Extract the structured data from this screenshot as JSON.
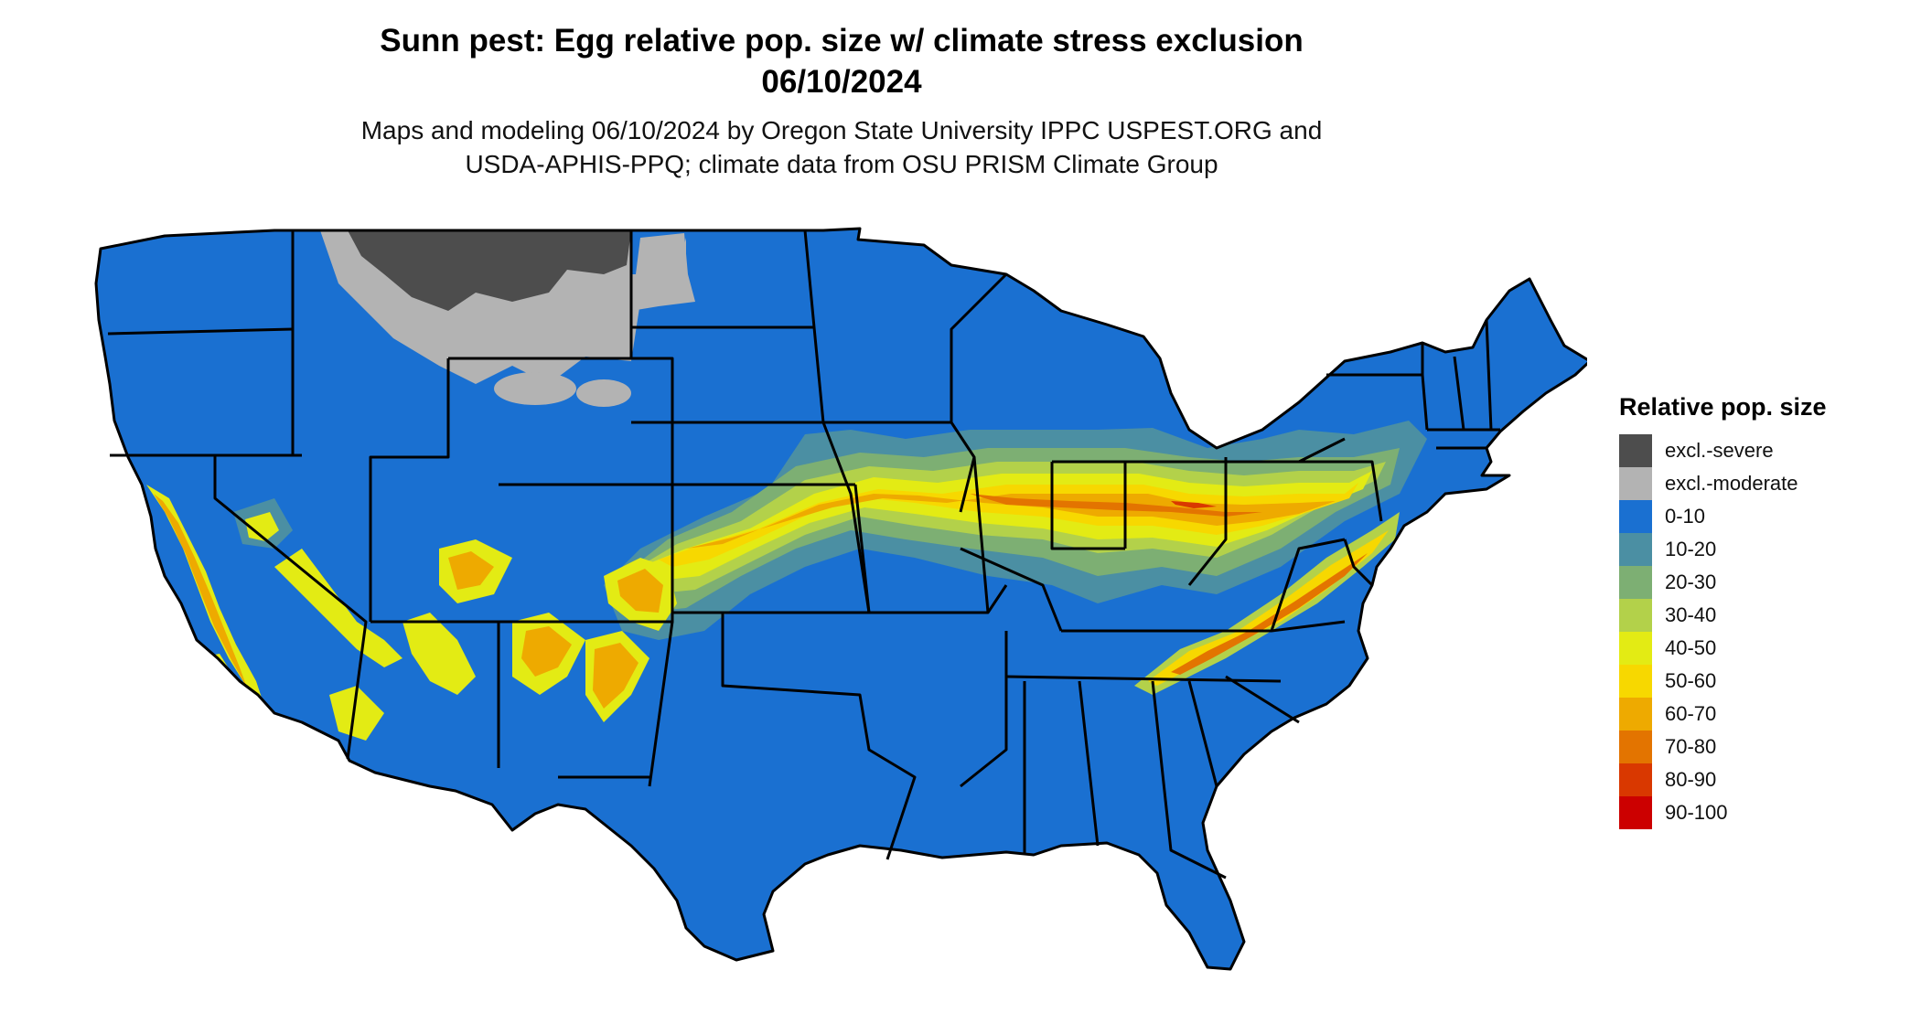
{
  "title": {
    "line1": "Sunn pest: Egg relative pop. size w/ climate stress exclusion",
    "line2": "06/10/2024"
  },
  "subtitle": {
    "line1": "Maps and modeling 06/10/2024 by Oregon State University IPPC USPEST.ORG and",
    "line2": "USDA-APHIS-PPQ; climate data from OSU PRISM Climate Group"
  },
  "legend": {
    "title": "Relative pop. size",
    "items": [
      {
        "label": "excl.-severe",
        "color": "#4d4d4d"
      },
      {
        "label": "excl.-moderate",
        "color": "#b3b3b3"
      },
      {
        "label": "0-10",
        "color": "#1a70d1"
      },
      {
        "label": "10-20",
        "color": "#4b8fa3"
      },
      {
        "label": "20-30",
        "color": "#7daf73"
      },
      {
        "label": "30-40",
        "color": "#b3d14a"
      },
      {
        "label": "40-50",
        "color": "#e3eb14"
      },
      {
        "label": "50-60",
        "color": "#f7d800"
      },
      {
        "label": "60-70",
        "color": "#eeaa00"
      },
      {
        "label": "70-80",
        "color": "#e37400"
      },
      {
        "label": "80-90",
        "color": "#d93800"
      },
      {
        "label": "90-100",
        "color": "#cc0000"
      }
    ]
  },
  "map": {
    "land_color": "#1a70d1",
    "border_color": "#000000"
  }
}
